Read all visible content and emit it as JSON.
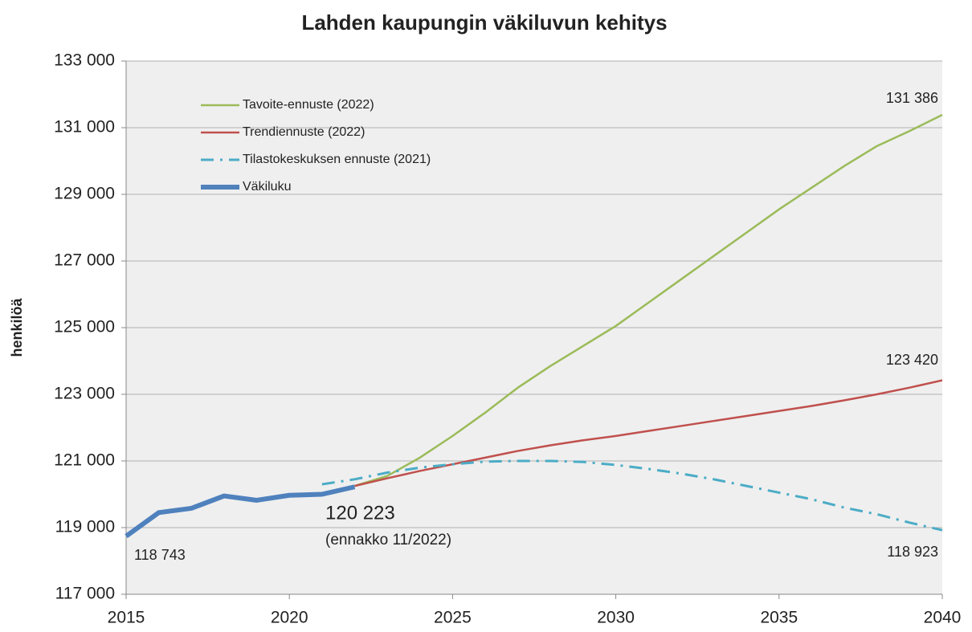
{
  "chart_data": {
    "type": "line",
    "title": "Lahden kaupungin väkiluvun kehitys",
    "y_label": "henkilöä",
    "x": [
      2015,
      2016,
      2017,
      2018,
      2019,
      2020,
      2021,
      2022,
      2023,
      2024,
      2025,
      2026,
      2027,
      2028,
      2029,
      2030,
      2031,
      2032,
      2033,
      2034,
      2035,
      2036,
      2037,
      2038,
      2039,
      2040
    ],
    "series": [
      {
        "name": "Tavoite-ennuste (2022)",
        "color": "#9bbb59",
        "width": 2.5,
        "dash": "solid",
        "values": [
          null,
          null,
          null,
          null,
          null,
          null,
          null,
          120250,
          120550,
          121100,
          121750,
          122450,
          123200,
          123850,
          124450,
          125050,
          125750,
          126450,
          127150,
          127850,
          128550,
          129200,
          129850,
          130450,
          130900,
          131386
        ]
      },
      {
        "name": "Trendiennuste (2022)",
        "color": "#c0504d",
        "width": 2.5,
        "dash": "solid",
        "values": [
          null,
          null,
          null,
          null,
          null,
          null,
          null,
          120250,
          120480,
          120700,
          120900,
          121100,
          121300,
          121470,
          121620,
          121750,
          121900,
          122050,
          122200,
          122350,
          122500,
          122650,
          122820,
          123000,
          123200,
          123420
        ]
      },
      {
        "name": "Tilastokeskuksen ennuste (2021)",
        "color": "#4bacc6",
        "width": 3,
        "dash": "dashdot",
        "values": [
          null,
          null,
          null,
          null,
          null,
          null,
          120300,
          120450,
          120650,
          120800,
          120900,
          120980,
          121000,
          121000,
          120970,
          120880,
          120760,
          120620,
          120450,
          120250,
          120050,
          119850,
          119600,
          119400,
          119150,
          118923
        ]
      },
      {
        "name": "Väkiluku",
        "color": "#4f81bd",
        "width": 6,
        "dash": "solid",
        "values": [
          118743,
          119450,
          119580,
          119950,
          119820,
          119970,
          120000,
          120223,
          null,
          null,
          null,
          null,
          null,
          null,
          null,
          null,
          null,
          null,
          null,
          null,
          null,
          null,
          null,
          null,
          null,
          null
        ]
      }
    ],
    "annotations": [
      "131 386",
      "123 420",
      "118 923",
      "118 743",
      "120 223",
      "(ennakko 11/2022)"
    ],
    "xlim": [
      2015,
      2040
    ],
    "xticks": [
      2015,
      2020,
      2025,
      2030,
      2035,
      2040
    ],
    "ylim": [
      117000,
      133000
    ],
    "yticks": [
      {
        "value": 117000,
        "label": "117 000"
      },
      {
        "value": 119000,
        "label": "119 000"
      },
      {
        "value": 121000,
        "label": "121 000"
      },
      {
        "value": 123000,
        "label": "123 000"
      },
      {
        "value": 125000,
        "label": "125 000"
      },
      {
        "value": 127000,
        "label": "127 000"
      },
      {
        "value": 129000,
        "label": "129 000"
      },
      {
        "value": 131000,
        "label": "131 000"
      },
      {
        "value": 133000,
        "label": "133 000"
      }
    ],
    "grid": true
  }
}
